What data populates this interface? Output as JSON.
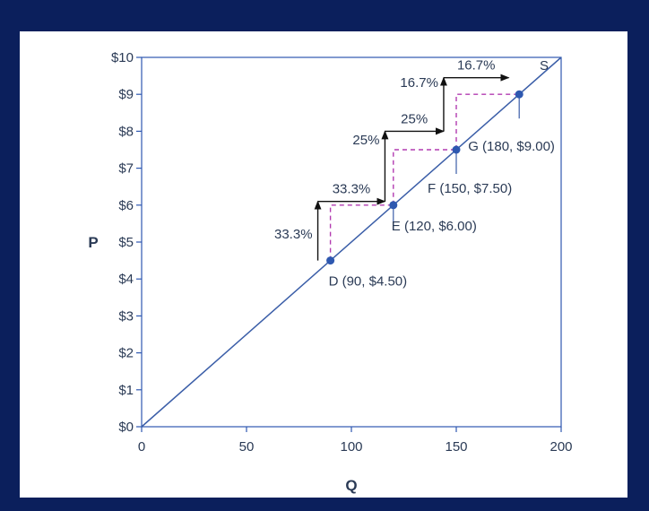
{
  "colors": {
    "background": "#0b1f5c",
    "panel": "#ffffff",
    "line": "#3b5ea8",
    "point": "#2e58b0",
    "axis": "#2e58b0",
    "dashed": "#b23bb0",
    "arrow": "#111111",
    "text": "#2a3a55"
  },
  "chart_data": {
    "type": "line",
    "xlabel": "Q",
    "ylabel": "P",
    "xlim": [
      0,
      200
    ],
    "ylim": [
      0,
      10
    ],
    "x_ticks": [
      0,
      50,
      100,
      150,
      200
    ],
    "x_tick_labels": [
      "0",
      "50",
      "100",
      "150",
      "200"
    ],
    "y_ticks": [
      0,
      1,
      2,
      3,
      4,
      5,
      6,
      7,
      8,
      9,
      10
    ],
    "y_tick_labels": [
      "$0",
      "$1",
      "$2",
      "$3",
      "$4",
      "$5",
      "$6",
      "$7",
      "$8",
      "$9",
      "$10"
    ],
    "grid": false,
    "series": [
      {
        "name": "S",
        "x": [
          0,
          200
        ],
        "y": [
          0,
          10
        ]
      }
    ],
    "points": [
      {
        "x": 90,
        "y": 4.5,
        "label": "D (90, $4.50)"
      },
      {
        "x": 120,
        "y": 6.0,
        "label": "E (120, $6.00)"
      },
      {
        "x": 150,
        "y": 7.5,
        "label": "F (150, $7.50)"
      },
      {
        "x": 180,
        "y": 9.0,
        "label": "G (180, $9.00)"
      }
    ],
    "steps": [
      {
        "x": 84,
        "y_from": 4.5,
        "y_to": 6.1,
        "vertical_label": "33.3%",
        "x_to": 116,
        "horizontal_label": "33.3%"
      },
      {
        "x": 116,
        "y_from": 6.1,
        "y_to": 8.0,
        "vertical_label": "25%",
        "x_to": 144,
        "horizontal_label": "25%"
      },
      {
        "x": 144,
        "y_from": 8.0,
        "y_to": 9.45,
        "vertical_label": "16.7%",
        "x_to": 175,
        "horizontal_label": "16.7%"
      }
    ]
  }
}
